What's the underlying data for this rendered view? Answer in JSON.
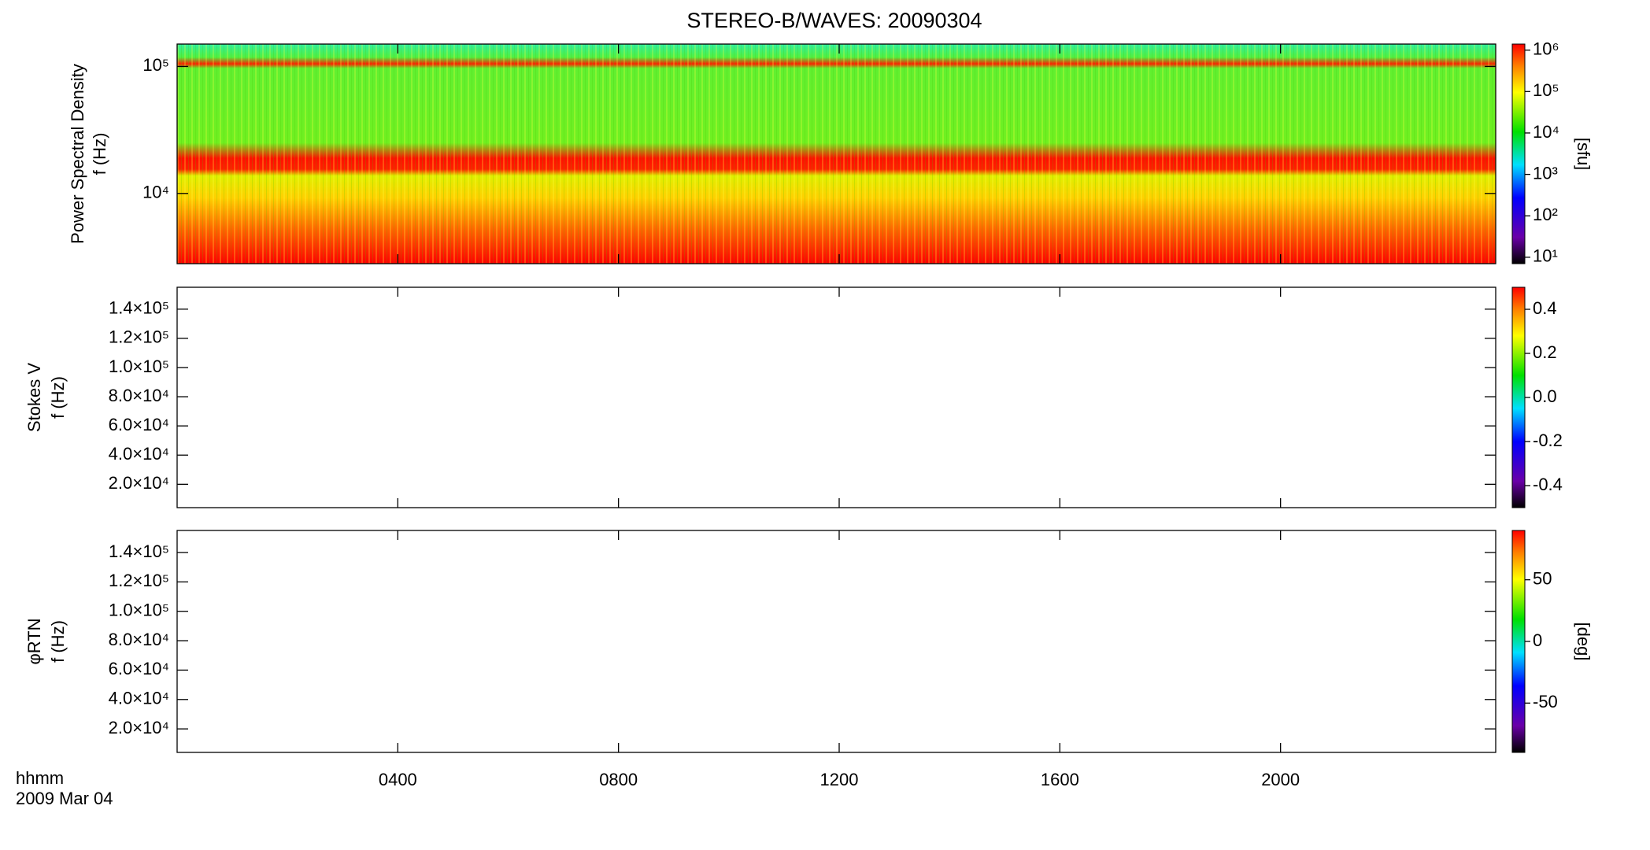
{
  "title": "STEREO-B/WAVES: 20090304",
  "x_axis": {
    "label": "hhmm",
    "date": "2009 Mar 04",
    "xlim": [
      0,
      23.9
    ],
    "xticks": [
      {
        "value": 4,
        "label": "0400"
      },
      {
        "value": 8,
        "label": "0800"
      },
      {
        "value": 12,
        "label": "1200"
      },
      {
        "value": 16,
        "label": "1600"
      },
      {
        "value": 20,
        "label": "2000"
      }
    ]
  },
  "chart_data": [
    {
      "type": "spectrogram",
      "ylabel": "Power Spectral Density",
      "yunit": "f (Hz)",
      "ylog": true,
      "ylim": [
        2800,
        150000
      ],
      "yticks": [
        {
          "value": 10000,
          "label": "10⁴"
        },
        {
          "value": 100000,
          "label": "10⁵"
        }
      ],
      "clog": true,
      "clim": [
        7,
        1400000
      ],
      "clabel": "[sfu]",
      "cticks": [
        {
          "value": 10,
          "label": "10¹"
        },
        {
          "value": 100,
          "label": "10²"
        },
        {
          "value": 1000,
          "label": "10³"
        },
        {
          "value": 10000,
          "label": "10⁴"
        },
        {
          "value": 100000,
          "label": "10⁵"
        },
        {
          "value": 1000000,
          "label": "10⁶"
        }
      ]
    },
    {
      "type": "spectrogram",
      "ylabel": "Stokes V",
      "yunit": "f (Hz)",
      "ylog": false,
      "ylim": [
        4000,
        155000
      ],
      "yticks": [
        {
          "value": 20000,
          "label": "2.0×10⁴"
        },
        {
          "value": 40000,
          "label": "4.0×10⁴"
        },
        {
          "value": 60000,
          "label": "6.0×10⁴"
        },
        {
          "value": 80000,
          "label": "8.0×10⁴"
        },
        {
          "value": 100000,
          "label": "1.0×10⁵"
        },
        {
          "value": 120000,
          "label": "1.2×10⁵"
        },
        {
          "value": 140000,
          "label": "1.4×10⁵"
        }
      ],
      "clog": false,
      "clim": [
        -0.5,
        0.5
      ],
      "cticks": [
        -0.4,
        -0.2,
        {
          "value": 0,
          "label": "0.0"
        },
        0.2,
        0.4
      ]
    },
    {
      "type": "spectrogram",
      "ylabel": "φRTN",
      "yunit": "f (Hz)",
      "ylog": false,
      "ylim": [
        4000,
        155000
      ],
      "yticks": [
        {
          "value": 20000,
          "label": "2.0×10⁴"
        },
        {
          "value": 40000,
          "label": "4.0×10⁴"
        },
        {
          "value": 60000,
          "label": "6.0×10⁴"
        },
        {
          "value": 80000,
          "label": "8.0×10⁴"
        },
        {
          "value": 100000,
          "label": "1.0×10⁵"
        },
        {
          "value": 120000,
          "label": "1.2×10⁵"
        },
        {
          "value": 140000,
          "label": "1.4×10⁵"
        }
      ],
      "clog": false,
      "clim": [
        -90,
        90
      ],
      "clabel": "[deg]",
      "cticks": [
        -50,
        0,
        50
      ]
    }
  ]
}
